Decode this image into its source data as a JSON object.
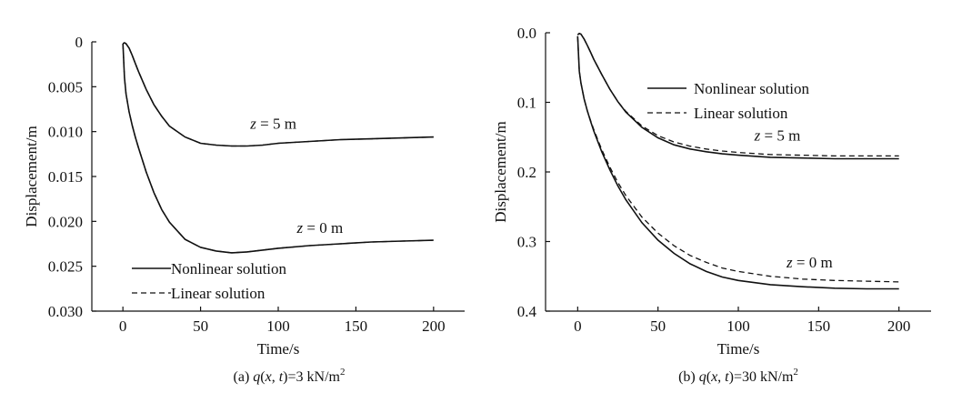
{
  "chart_data": [
    {
      "type": "line",
      "caption": {
        "prefix": "(a) ",
        "q": "q",
        "paren_open": "(",
        "x": "x",
        "comma": ", ",
        "t": "t",
        "rest": ")=3 kN/m",
        "sup": "2"
      },
      "xlabel": "Time/s",
      "ylabel": "Displacement/m",
      "xlim": [
        -20,
        220
      ],
      "ylim": [
        0,
        0.03
      ],
      "y_inverted": true,
      "xticks": [
        0,
        50,
        100,
        150,
        200
      ],
      "xtick_labels": [
        "0",
        "50",
        "100",
        "150",
        "200"
      ],
      "yticks": [
        0,
        0.005,
        0.01,
        0.015,
        0.02,
        0.025,
        0.03
      ],
      "ytick_labels": [
        "0",
        "0.005",
        "0.010",
        "0.015",
        "0.020",
        "0.025",
        "0.030"
      ],
      "grid": false,
      "legend": {
        "placement": "bottom-left",
        "entries": [
          "Nonlinear solution",
          "Linear solution"
        ]
      },
      "annotations": [
        {
          "z": "z",
          "rest": " = 5 m",
          "x": 82,
          "y": 0.0097
        },
        {
          "z": "z",
          "rest": " = 0 m",
          "x": 112,
          "y": 0.0213
        }
      ],
      "series": [
        {
          "name": "Nonlinear solution",
          "style": "solid",
          "curve": "z=5 m",
          "x": [
            0,
            1,
            2,
            4,
            6,
            8,
            10,
            15,
            20,
            25,
            30,
            40,
            50,
            60,
            70,
            80,
            90,
            100,
            120,
            140,
            160,
            180,
            200
          ],
          "y": [
            0.0002,
            0.0001,
            0.0002,
            0.0007,
            0.0015,
            0.0024,
            0.0033,
            0.0053,
            0.007,
            0.0083,
            0.0094,
            0.0106,
            0.0113,
            0.0115,
            0.0116,
            0.0116,
            0.0115,
            0.0113,
            0.0111,
            0.0109,
            0.0108,
            0.0107,
            0.0106
          ]
        },
        {
          "name": "Linear solution",
          "style": "dashed",
          "curve": "z=5 m",
          "x": [
            0,
            1,
            2,
            4,
            6,
            8,
            10,
            15,
            20,
            25,
            30,
            40,
            50,
            60,
            70,
            80,
            90,
            100,
            120,
            140,
            160,
            180,
            200
          ],
          "y": [
            0.0002,
            0.0001,
            0.0002,
            0.0007,
            0.0015,
            0.0024,
            0.0033,
            0.0053,
            0.007,
            0.0083,
            0.0094,
            0.0106,
            0.0113,
            0.0115,
            0.0116,
            0.0116,
            0.0115,
            0.0113,
            0.0111,
            0.0109,
            0.0108,
            0.0107,
            0.0106
          ]
        },
        {
          "name": "Nonlinear solution",
          "style": "solid",
          "curve": "z=0 m",
          "x": [
            0,
            1,
            2,
            4,
            6,
            8,
            10,
            15,
            20,
            25,
            30,
            40,
            50,
            60,
            70,
            80,
            90,
            100,
            120,
            140,
            160,
            180,
            200
          ],
          "y": [
            0.0002,
            0.004,
            0.0058,
            0.0078,
            0.0093,
            0.0106,
            0.0118,
            0.0145,
            0.0168,
            0.0187,
            0.0201,
            0.022,
            0.0229,
            0.0233,
            0.0235,
            0.0234,
            0.0232,
            0.023,
            0.0227,
            0.0225,
            0.0223,
            0.0222,
            0.0221
          ]
        },
        {
          "name": "Linear solution",
          "style": "dashed",
          "curve": "z=0 m",
          "x": [
            0,
            1,
            2,
            4,
            6,
            8,
            10,
            15,
            20,
            25,
            30,
            40,
            50,
            60,
            70,
            80,
            90,
            100,
            120,
            140,
            160,
            180,
            200
          ],
          "y": [
            0.0002,
            0.004,
            0.0058,
            0.0078,
            0.0093,
            0.0106,
            0.0118,
            0.0145,
            0.0168,
            0.0187,
            0.0201,
            0.022,
            0.0229,
            0.0233,
            0.0235,
            0.0234,
            0.0232,
            0.023,
            0.0227,
            0.0225,
            0.0223,
            0.0222,
            0.0221
          ]
        }
      ]
    },
    {
      "type": "line",
      "caption": {
        "prefix": "(b) ",
        "q": "q",
        "paren_open": "(",
        "x": "x",
        "comma": ", ",
        "t": "t",
        "rest": ")=30 kN/m",
        "sup": "2"
      },
      "xlabel": "Time/s",
      "ylabel": "Displacement/m",
      "xlim": [
        -20,
        220
      ],
      "ylim": [
        0,
        0.4
      ],
      "y_inverted": true,
      "xticks": [
        0,
        50,
        100,
        150,
        200
      ],
      "xtick_labels": [
        "0",
        "50",
        "100",
        "150",
        "200"
      ],
      "yticks": [
        0,
        0.1,
        0.2,
        0.3,
        0.4
      ],
      "ytick_labels": [
        "0.0",
        "0.1",
        "0.2",
        "0.3",
        "0.4"
      ],
      "grid": false,
      "legend": {
        "placement": "top-center",
        "entries": [
          "Nonlinear solution",
          "Linear solution"
        ]
      },
      "annotations": [
        {
          "z": "z",
          "rest": " = 5 m",
          "x": 110,
          "y": 0.155
        },
        {
          "z": "z",
          "rest": " = 0 m",
          "x": 130,
          "y": 0.337
        }
      ],
      "series": [
        {
          "name": "Nonlinear solution",
          "style": "solid",
          "curve": "z=5 m",
          "x": [
            0,
            1,
            2,
            4,
            6,
            8,
            10,
            15,
            20,
            25,
            30,
            40,
            50,
            60,
            70,
            80,
            90,
            100,
            120,
            140,
            160,
            180,
            200
          ],
          "y": [
            0.003,
            0.001,
            0.002,
            0.009,
            0.018,
            0.028,
            0.038,
            0.06,
            0.081,
            0.099,
            0.114,
            0.136,
            0.151,
            0.161,
            0.167,
            0.171,
            0.174,
            0.176,
            0.179,
            0.18,
            0.181,
            0.181,
            0.181
          ]
        },
        {
          "name": "Linear solution",
          "style": "dashed",
          "curve": "z=5 m",
          "x": [
            0,
            1,
            2,
            4,
            6,
            8,
            10,
            15,
            20,
            25,
            30,
            40,
            50,
            60,
            70,
            80,
            90,
            100,
            120,
            140,
            160,
            180,
            200
          ],
          "y": [
            0.003,
            0.001,
            0.002,
            0.009,
            0.018,
            0.028,
            0.038,
            0.06,
            0.081,
            0.099,
            0.113,
            0.134,
            0.148,
            0.157,
            0.163,
            0.167,
            0.17,
            0.172,
            0.175,
            0.176,
            0.177,
            0.177,
            0.177
          ]
        },
        {
          "name": "Nonlinear solution",
          "style": "solid",
          "curve": "z=0 m",
          "x": [
            0,
            1,
            2,
            4,
            6,
            8,
            10,
            15,
            20,
            25,
            30,
            40,
            50,
            60,
            70,
            80,
            90,
            100,
            120,
            140,
            160,
            180,
            200
          ],
          "y": [
            0.005,
            0.055,
            0.072,
            0.095,
            0.112,
            0.127,
            0.141,
            0.171,
            0.197,
            0.22,
            0.24,
            0.273,
            0.298,
            0.317,
            0.332,
            0.343,
            0.351,
            0.356,
            0.362,
            0.365,
            0.367,
            0.368,
            0.368
          ]
        },
        {
          "name": "Linear solution",
          "style": "dashed",
          "curve": "z=0 m",
          "x": [
            0,
            1,
            2,
            4,
            6,
            8,
            10,
            15,
            20,
            25,
            30,
            40,
            50,
            60,
            70,
            80,
            90,
            100,
            120,
            140,
            160,
            180,
            200
          ],
          "y": [
            0.005,
            0.055,
            0.072,
            0.095,
            0.112,
            0.126,
            0.139,
            0.168,
            0.193,
            0.215,
            0.234,
            0.265,
            0.288,
            0.306,
            0.32,
            0.33,
            0.338,
            0.343,
            0.35,
            0.354,
            0.356,
            0.357,
            0.358
          ]
        }
      ]
    }
  ]
}
